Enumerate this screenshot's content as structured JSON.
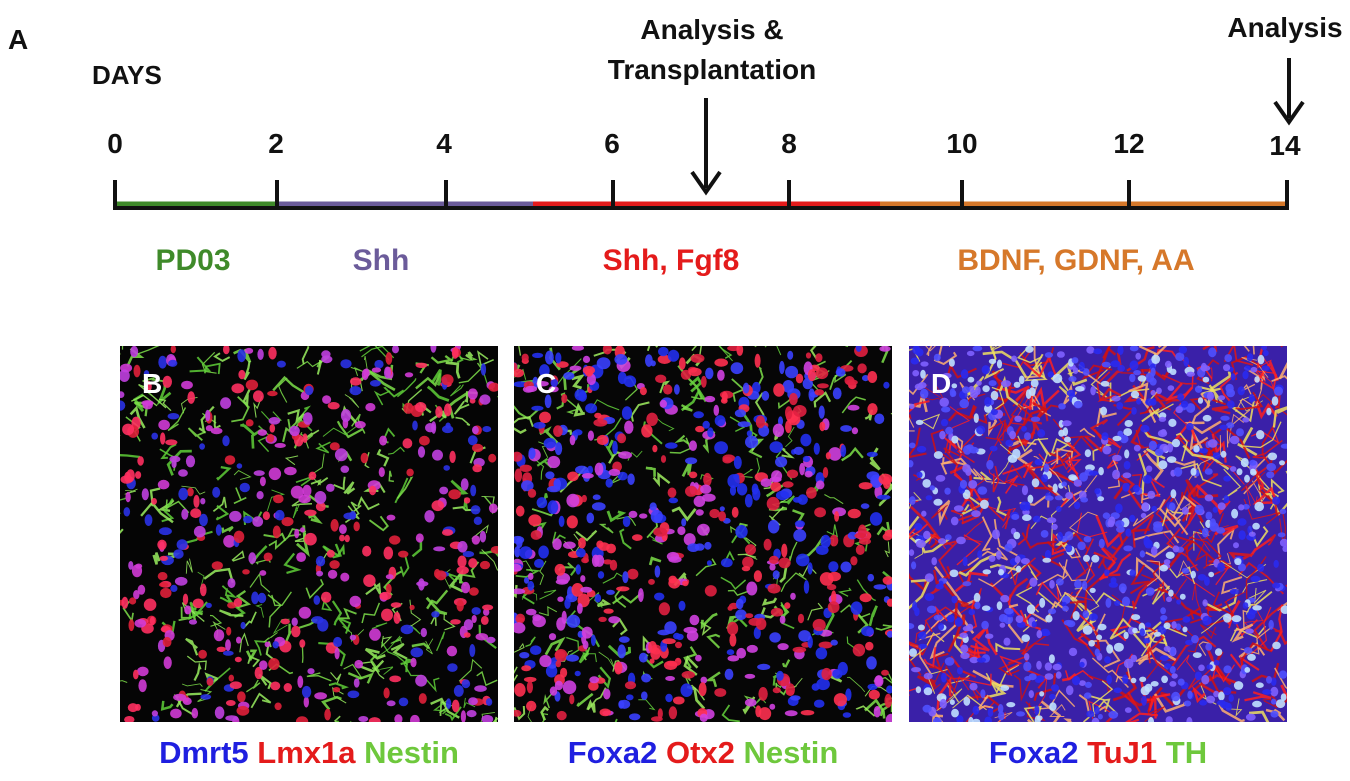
{
  "panel_a": {
    "letter": "A",
    "days_label": "DAYS",
    "ticks": [
      "0",
      "2",
      "4",
      "6",
      "8",
      "10",
      "12",
      "14"
    ],
    "annotations": {
      "mid_line1": "Analysis &",
      "mid_line2": "Transplantation",
      "end": "Analysis"
    },
    "phases": [
      {
        "label": "PD03",
        "color": "#3f8a2a"
      },
      {
        "label": "Shh",
        "color": "#6b5b9a"
      },
      {
        "label": "Shh, Fgf8",
        "color": "#e41b1b"
      },
      {
        "label": "BDNF, GDNF, AA",
        "color": "#d6782a"
      }
    ]
  },
  "panels": [
    {
      "letter": "B",
      "markers": [
        {
          "text": "Dmrt5",
          "color": "#1f1fe0"
        },
        {
          "text": "Lmx1a",
          "color": "#e41b1b"
        },
        {
          "text": "Nestin",
          "color": "#6ec83c"
        }
      ]
    },
    {
      "letter": "C",
      "markers": [
        {
          "text": "Foxa2",
          "color": "#1f1fe0"
        },
        {
          "text": "Otx2",
          "color": "#e41b1b"
        },
        {
          "text": "Nestin",
          "color": "#6ec83c"
        }
      ]
    },
    {
      "letter": "D",
      "markers": [
        {
          "text": "Foxa2",
          "color": "#1f1fe0"
        },
        {
          "text": "TuJ1",
          "color": "#e41b1b"
        },
        {
          "text": "TH",
          "color": "#6ec83c"
        }
      ]
    }
  ]
}
